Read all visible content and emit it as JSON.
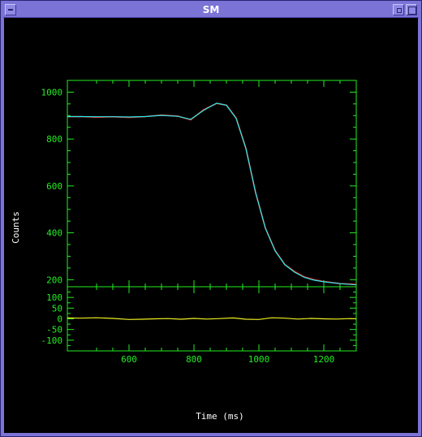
{
  "window": {
    "title": "SM"
  },
  "colors": {
    "axes": "#22ee22",
    "data": "#ff2222",
    "model": "#22eeee",
    "residual": "#eeee22",
    "text": "#ffffff",
    "background": "#000000"
  },
  "icons": {
    "menu": "window-menu-icon",
    "minimize": "minimize-icon",
    "maximize": "maximize-icon"
  },
  "chart_data": [
    {
      "type": "line",
      "title": "",
      "xlabel": "",
      "ylabel": "Counts",
      "xlim": [
        410,
        1300
      ],
      "ylim": [
        170,
        1050
      ],
      "x_ticks": [
        600,
        800,
        1000,
        1200
      ],
      "y_ticks": [
        200,
        400,
        600,
        800,
        1000
      ],
      "grid": false,
      "series": [
        {
          "role": "data",
          "x": [
            410,
            450,
            500,
            550,
            600,
            650,
            700,
            750,
            790,
            830,
            870,
            900,
            930,
            960,
            990,
            1020,
            1050,
            1080,
            1110,
            1140,
            1170,
            1200,
            1250,
            1300
          ],
          "y": [
            895,
            896,
            893,
            895,
            892,
            896,
            902,
            898,
            882,
            925,
            952,
            945,
            890,
            760,
            570,
            420,
            325,
            265,
            235,
            212,
            200,
            192,
            183,
            180
          ]
        },
        {
          "role": "model",
          "x": [
            410,
            450,
            500,
            550,
            600,
            650,
            700,
            750,
            790,
            830,
            870,
            900,
            930,
            960,
            990,
            1020,
            1050,
            1080,
            1110,
            1140,
            1170,
            1200,
            1250,
            1300
          ],
          "y": [
            896,
            896,
            895,
            895,
            894,
            896,
            901,
            897,
            884,
            923,
            953,
            944,
            888,
            760,
            572,
            420,
            323,
            264,
            232,
            210,
            198,
            191,
            183,
            178
          ]
        }
      ]
    },
    {
      "type": "line",
      "title": "",
      "xlabel": "Time (ms)",
      "ylabel": "",
      "xlim": [
        410,
        1300
      ],
      "ylim": [
        -150,
        150
      ],
      "x_ticks": [
        600,
        800,
        1000,
        1200
      ],
      "y_ticks": [
        -100,
        -50,
        0,
        50,
        100
      ],
      "grid": false,
      "series": [
        {
          "role": "residual",
          "x": [
            410,
            450,
            500,
            550,
            600,
            640,
            680,
            720,
            760,
            800,
            840,
            880,
            920,
            960,
            1000,
            1040,
            1080,
            1120,
            1160,
            1200,
            1240,
            1280,
            1300
          ],
          "y": [
            4,
            3,
            5,
            2,
            -3,
            -2,
            0,
            1,
            -2,
            2,
            -1,
            1,
            4,
            -2,
            -3,
            5,
            3,
            -1,
            2,
            0,
            -1,
            1,
            0
          ]
        }
      ]
    }
  ]
}
